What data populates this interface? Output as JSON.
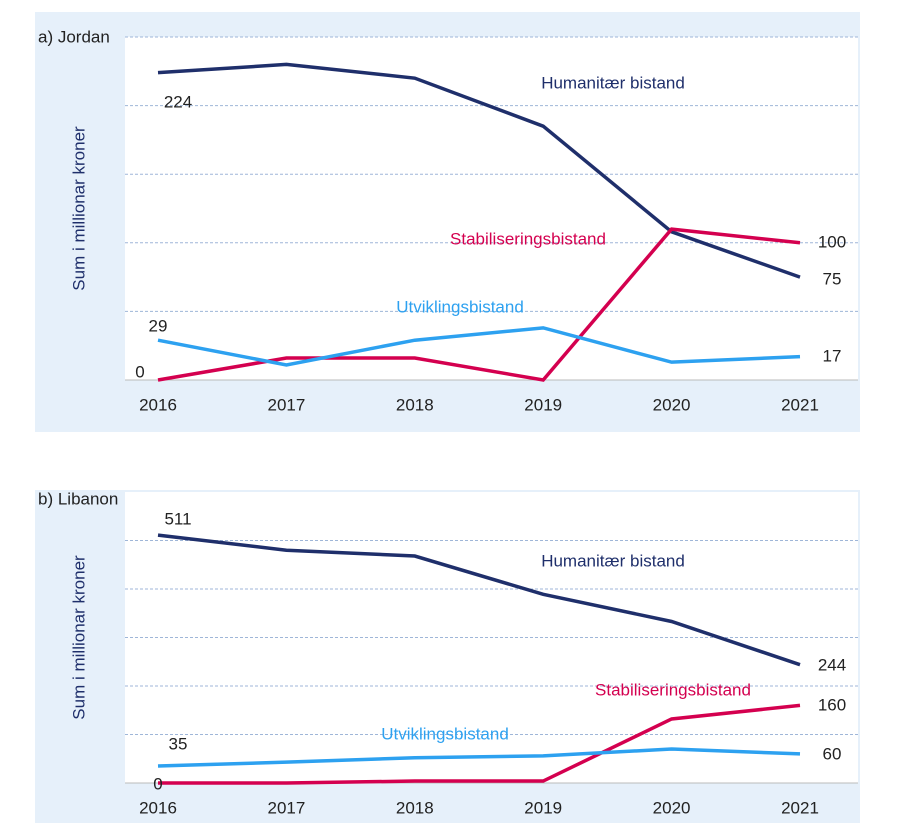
{
  "chart_data": [
    {
      "type": "line",
      "title": "a) Jordan",
      "y_label": "Sum i millionar kroner",
      "categories": [
        "2016",
        "2017",
        "2018",
        "2019",
        "2020",
        "2021"
      ],
      "ylim": [
        0,
        250
      ],
      "yticks": [
        0,
        50,
        100,
        150,
        200,
        250
      ],
      "grid": true,
      "series": [
        {
          "name": "Humanitær bistand",
          "color": "#1f2f6b",
          "values": [
            224,
            230,
            220,
            185,
            108,
            75
          ]
        },
        {
          "name": "Stabiliseringsbistand",
          "color": "#d4004f",
          "values": [
            0,
            16,
            16,
            0,
            110,
            100
          ]
        },
        {
          "name": "Utviklingsbistand",
          "color": "#2da1f0",
          "values": [
            29,
            11,
            29,
            38,
            13,
            17
          ]
        }
      ]
    },
    {
      "type": "line",
      "title": "b) Libanon",
      "y_label": "Sum i millionar kroner",
      "categories": [
        "2016",
        "2017",
        "2018",
        "2019",
        "2020",
        "2021"
      ],
      "ylim": [
        0,
        600
      ],
      "yticks": [
        0,
        100,
        200,
        300,
        400,
        500
      ],
      "grid": true,
      "series": [
        {
          "name": "Humanitær bistand",
          "color": "#1f2f6b",
          "values": [
            511,
            480,
            468,
            389,
            333,
            244
          ]
        },
        {
          "name": "Stabiliseringsbistand",
          "color": "#d4004f",
          "values": [
            0,
            0,
            4,
            4,
            132,
            160
          ]
        },
        {
          "name": "Utviklingsbistand",
          "color": "#2da1f0",
          "values": [
            35,
            43,
            52,
            56,
            70,
            60
          ]
        }
      ]
    }
  ]
}
